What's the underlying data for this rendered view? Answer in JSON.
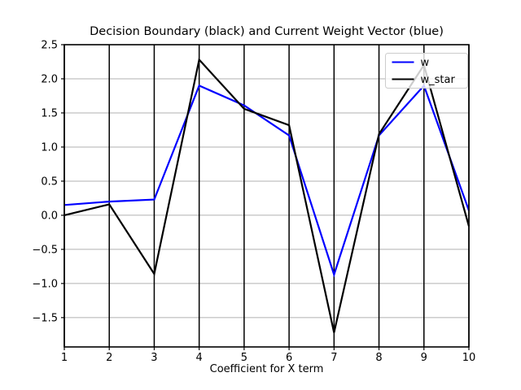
{
  "chart_data": {
    "type": "line",
    "title": "Decision Boundary (black) and Current Weight Vector (blue)",
    "xlabel": "Coefficient for X term",
    "ylabel": "",
    "x": [
      1,
      2,
      3,
      4,
      5,
      6,
      7,
      8,
      9,
      10
    ],
    "series": [
      {
        "name": "w",
        "color": "#0000ff",
        "values": [
          0.15,
          0.2,
          0.23,
          1.9,
          1.61,
          1.17,
          -0.87,
          1.17,
          1.9,
          0.07
        ]
      },
      {
        "name": "w_star",
        "color": "#000000",
        "values": [
          0.0,
          0.16,
          -0.86,
          2.28,
          1.56,
          1.32,
          -1.72,
          1.19,
          2.2,
          -0.16
        ]
      }
    ],
    "xlim": [
      1,
      10
    ],
    "ylim": [
      -1.93,
      2.5
    ],
    "xticks": [
      1,
      2,
      3,
      4,
      5,
      6,
      7,
      8,
      9,
      10
    ],
    "yticks": [
      2.5,
      2.0,
      1.5,
      1.0,
      0.5,
      0.0,
      -0.5,
      -1.0,
      -1.5
    ],
    "grid": {
      "vertical_color": "#000000",
      "horizontal_color": "#b0b0b0"
    },
    "legend": {
      "position": "upper right",
      "entries": [
        "w",
        "w_star"
      ],
      "background": "#ffffff",
      "border_color": "#cccccc"
    },
    "frame_color": "#000000",
    "background_color": "#ffffff"
  }
}
